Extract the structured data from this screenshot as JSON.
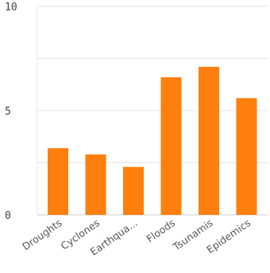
{
  "chart_data": {
    "type": "bar",
    "title": "",
    "xlabel": "",
    "ylabel": "",
    "categories": [
      "Droughts",
      "Cyclones",
      "Earthqua...",
      "Floods",
      "Tsunamis",
      "Epidemics"
    ],
    "values": [
      3.2,
      2.9,
      2.3,
      6.6,
      7.1,
      5.6
    ],
    "ylim": [
      0,
      10
    ],
    "yticks": [
      "0",
      "5",
      "10"
    ],
    "grid": true,
    "legend": "none",
    "bar_color": "#ff7f0e"
  }
}
